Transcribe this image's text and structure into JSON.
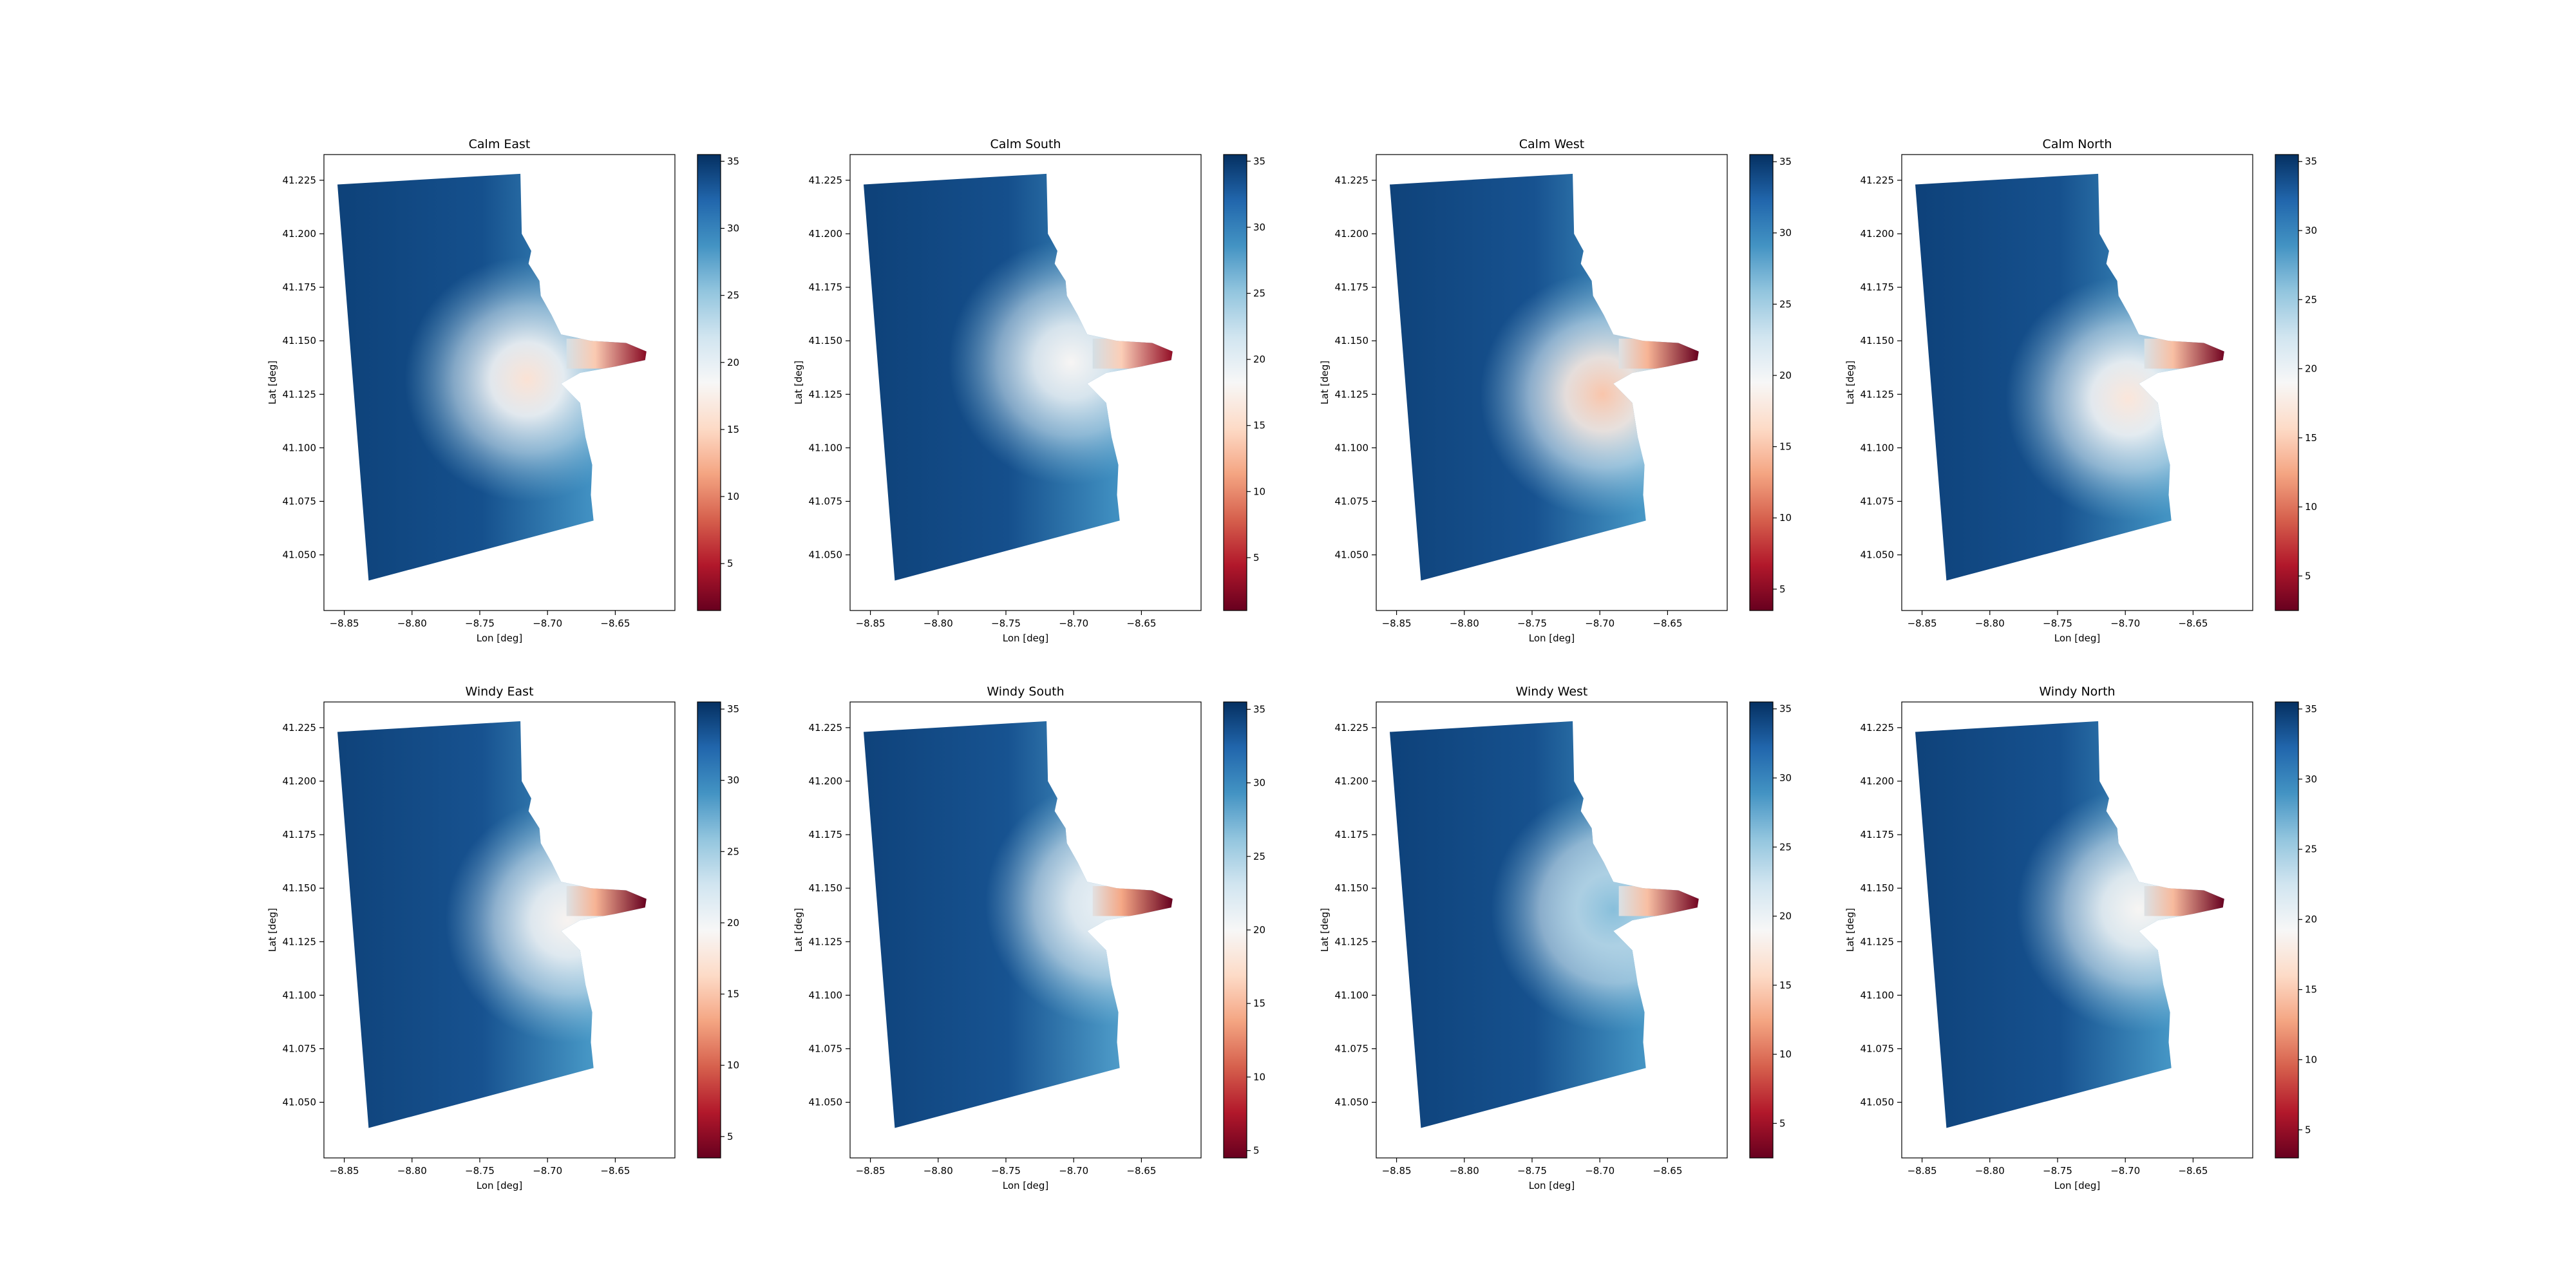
{
  "chart_data": [
    {
      "type": "heatmap",
      "title": "Calm East",
      "xlabel": "Lon [deg]",
      "ylabel": "Lat [deg]",
      "xlim": [
        -8.865,
        -8.606
      ],
      "ylim": [
        41.024,
        41.237
      ],
      "xticks": [
        "−8.85",
        "−8.80",
        "−8.75",
        "−8.70",
        "−8.65"
      ],
      "yticks": [
        "41.050",
        "41.075",
        "41.100",
        "41.125",
        "41.150",
        "41.175",
        "41.200",
        "41.225"
      ],
      "colorbar": {
        "colormap": "RdBu",
        "range": [
          1.5,
          35.5
        ],
        "ticks": [
          "5",
          "10",
          "15",
          "20",
          "25",
          "30",
          "35"
        ]
      },
      "hotspot": {
        "lon": -8.715,
        "lat": 41.132,
        "value": 16
      }
    },
    {
      "type": "heatmap",
      "title": "Calm South",
      "xlabel": "Lon [deg]",
      "ylabel": "Lat [deg]",
      "xlim": [
        -8.865,
        -8.606
      ],
      "ylim": [
        41.024,
        41.237
      ],
      "xticks": [
        "−8.85",
        "−8.80",
        "−8.75",
        "−8.70",
        "−8.65"
      ],
      "yticks": [
        "41.050",
        "41.075",
        "41.100",
        "41.125",
        "41.150",
        "41.175",
        "41.200",
        "41.225"
      ],
      "colorbar": {
        "colormap": "RdBu",
        "range": [
          1.0,
          35.5
        ],
        "ticks": [
          "5",
          "10",
          "15",
          "20",
          "25",
          "30",
          "35"
        ]
      },
      "hotspot": {
        "lon": -8.702,
        "lat": 41.14,
        "value": 18
      }
    },
    {
      "type": "heatmap",
      "title": "Calm West",
      "xlabel": "Lon [deg]",
      "ylabel": "Lat [deg]",
      "xlim": [
        -8.865,
        -8.606
      ],
      "ylim": [
        41.024,
        41.237
      ],
      "xticks": [
        "−8.85",
        "−8.80",
        "−8.75",
        "−8.70",
        "−8.65"
      ],
      "yticks": [
        "41.050",
        "41.075",
        "41.100",
        "41.125",
        "41.150",
        "41.175",
        "41.200",
        "41.225"
      ],
      "colorbar": {
        "colormap": "RdBu",
        "range": [
          3.5,
          35.5
        ],
        "ticks": [
          "5",
          "10",
          "15",
          "20",
          "25",
          "30",
          "35"
        ]
      },
      "hotspot": {
        "lon": -8.698,
        "lat": 41.125,
        "value": 15
      }
    },
    {
      "type": "heatmap",
      "title": "Calm North",
      "xlabel": "Lon [deg]",
      "ylabel": "Lat [deg]",
      "xlim": [
        -8.865,
        -8.606
      ],
      "ylim": [
        41.024,
        41.237
      ],
      "xticks": [
        "−8.85",
        "−8.80",
        "−8.75",
        "−8.70",
        "−8.65"
      ],
      "yticks": [
        "41.050",
        "41.075",
        "41.100",
        "41.125",
        "41.150",
        "41.175",
        "41.200",
        "41.225"
      ],
      "colorbar": {
        "colormap": "RdBu",
        "range": [
          2.5,
          35.5
        ],
        "ticks": [
          "5",
          "10",
          "15",
          "20",
          "25",
          "30",
          "35"
        ]
      },
      "hotspot": {
        "lon": -8.698,
        "lat": 41.123,
        "value": 17
      }
    },
    {
      "type": "heatmap",
      "title": "Windy East",
      "xlabel": "Lon [deg]",
      "ylabel": "Lat [deg]",
      "xlim": [
        -8.865,
        -8.606
      ],
      "ylim": [
        41.024,
        41.237
      ],
      "xticks": [
        "−8.85",
        "−8.80",
        "−8.75",
        "−8.70",
        "−8.65"
      ],
      "yticks": [
        "41.050",
        "41.075",
        "41.100",
        "41.125",
        "41.150",
        "41.175",
        "41.200",
        "41.225"
      ],
      "colorbar": {
        "colormap": "RdBu",
        "range": [
          3.5,
          35.5
        ],
        "ticks": [
          "5",
          "10",
          "15",
          "20",
          "25",
          "30",
          "35"
        ]
      },
      "hotspot": {
        "lon": -8.685,
        "lat": 41.135,
        "value": 19
      }
    },
    {
      "type": "heatmap",
      "title": "Windy South",
      "xlabel": "Lon [deg]",
      "ylabel": "Lat [deg]",
      "xlim": [
        -8.865,
        -8.606
      ],
      "ylim": [
        41.024,
        41.237
      ],
      "xticks": [
        "−8.85",
        "−8.80",
        "−8.75",
        "−8.70",
        "−8.65"
      ],
      "yticks": [
        "41.050",
        "41.075",
        "41.100",
        "41.125",
        "41.150",
        "41.175",
        "41.200",
        "41.225"
      ],
      "colorbar": {
        "colormap": "RdBu",
        "range": [
          4.5,
          35.5
        ],
        "ticks": [
          "5",
          "10",
          "15",
          "20",
          "25",
          "30",
          "35"
        ]
      },
      "hotspot": {
        "lon": -8.675,
        "lat": 41.143,
        "value": 21
      }
    },
    {
      "type": "heatmap",
      "title": "Windy West",
      "xlabel": "Lon [deg]",
      "ylabel": "Lat [deg]",
      "xlim": [
        -8.865,
        -8.606
      ],
      "ylim": [
        41.024,
        41.237
      ],
      "xticks": [
        "−8.85",
        "−8.80",
        "−8.75",
        "−8.70",
        "−8.65"
      ],
      "yticks": [
        "41.050",
        "41.075",
        "41.100",
        "41.125",
        "41.150",
        "41.175",
        "41.200",
        "41.225"
      ],
      "colorbar": {
        "colormap": "RdBu",
        "range": [
          2.5,
          35.5
        ],
        "ticks": [
          "5",
          "10",
          "15",
          "20",
          "25",
          "30",
          "35"
        ]
      },
      "hotspot": {
        "lon": -8.69,
        "lat": 41.14,
        "value": 26
      }
    },
    {
      "type": "heatmap",
      "title": "Windy North",
      "xlabel": "Lon [deg]",
      "ylabel": "Lat [deg]",
      "xlim": [
        -8.865,
        -8.606
      ],
      "ylim": [
        41.024,
        41.237
      ],
      "xticks": [
        "−8.85",
        "−8.80",
        "−8.75",
        "−8.70",
        "−8.65"
      ],
      "yticks": [
        "41.050",
        "41.075",
        "41.100",
        "41.125",
        "41.150",
        "41.175",
        "41.200",
        "41.225"
      ],
      "colorbar": {
        "colormap": "RdBu",
        "range": [
          3.0,
          35.5
        ],
        "ticks": [
          "5",
          "10",
          "15",
          "20",
          "25",
          "30",
          "35"
        ]
      },
      "hotspot": {
        "lon": -8.69,
        "lat": 41.14,
        "value": 19
      }
    }
  ]
}
